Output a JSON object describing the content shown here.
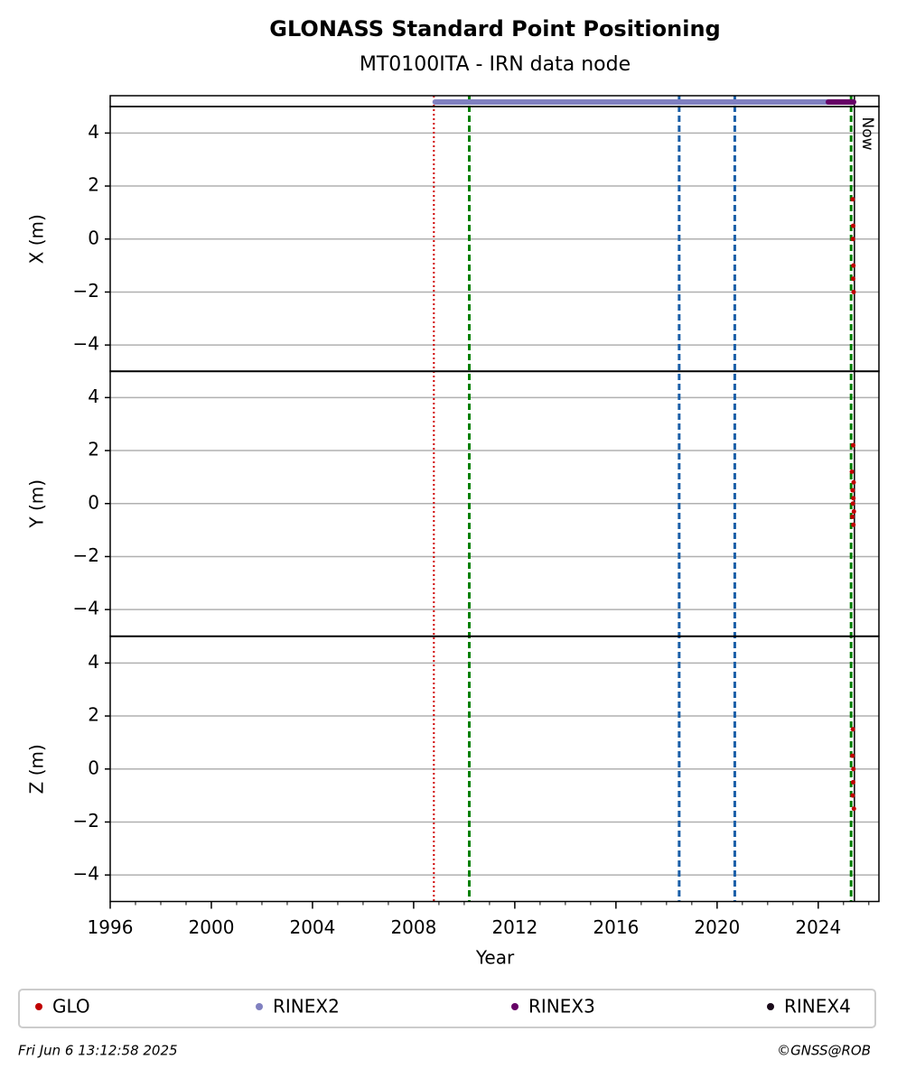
{
  "chart_data": {
    "type": "scatter",
    "title": "GLONASS Standard Point Positioning",
    "subtitle": "MT0100ITA - IRN data node",
    "x_label": "Year",
    "xlim": [
      1996,
      2026.4
    ],
    "xticks": [
      1996,
      2000,
      2004,
      2008,
      2012,
      2016,
      2020,
      2024
    ],
    "grid": true,
    "series": [
      {
        "name": "GLO",
        "color": "#c00000"
      },
      {
        "name": "RINEX2",
        "color": "#8080c0",
        "span": [
          2008.85,
          2025.3
        ]
      },
      {
        "name": "RINEX3",
        "color": "#660066",
        "span": [
          2024.4,
          2025.4
        ]
      },
      {
        "name": "RINEX4",
        "color": "#1a0a1a"
      }
    ],
    "events": [
      {
        "x": 2008.8,
        "color": "#d00000",
        "style": "dotted"
      },
      {
        "x": 2010.2,
        "color": "#008000",
        "style": "dashed"
      },
      {
        "x": 2018.5,
        "color": "#1a5fa8",
        "style": "dashed"
      },
      {
        "x": 2020.7,
        "color": "#1a5fa8",
        "style": "dashed"
      },
      {
        "x": 2025.3,
        "color": "#008000",
        "style": "dashed"
      }
    ],
    "now": {
      "x": 2025.43,
      "label": "Now"
    },
    "panels": [
      {
        "y_label": "X (m)",
        "ylim": [
          -5,
          5
        ],
        "yticks": [
          {
            "value": -4,
            "label": "−4"
          },
          {
            "value": -2,
            "label": "−2"
          },
          0,
          2,
          4
        ],
        "x": [
          2025.36,
          2025.38,
          2025.37,
          2025.39,
          2025.38,
          2025.4
        ],
        "values": [
          1.5,
          0.5,
          0,
          -1,
          -1.5,
          -2
        ]
      },
      {
        "y_label": "Y (m)",
        "ylim": [
          -5,
          5
        ],
        "yticks": [
          {
            "value": -4,
            "label": "−4"
          },
          {
            "value": -2,
            "label": "−2"
          },
          0,
          2,
          4
        ],
        "x": [
          2025.38,
          2025.33,
          2025.4,
          2025.36,
          2025.39,
          2025.37,
          2025.41,
          2025.35,
          2025.39
        ],
        "values": [
          2.2,
          1.2,
          0.8,
          0.5,
          0.2,
          0,
          -0.3,
          -0.5,
          -0.8
        ]
      },
      {
        "y_label": "Z (m)",
        "ylim": [
          -5,
          5
        ],
        "yticks": [
          {
            "value": -4,
            "label": "−4"
          },
          {
            "value": -2,
            "label": "−2"
          },
          0,
          2,
          4
        ],
        "x": [
          2025.37,
          2025.35,
          2025.39,
          2025.38,
          2025.36,
          2025.41
        ],
        "values": [
          1.5,
          0.5,
          0,
          -0.5,
          -1,
          -1.5
        ]
      }
    ],
    "timestamp": "Fri Jun  6 13:12:58 2025",
    "copyright": "©GNSS@ROB"
  }
}
